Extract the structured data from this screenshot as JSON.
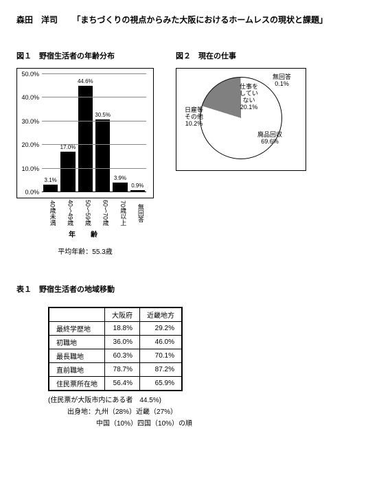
{
  "header": {
    "author": "森田　洋司",
    "title": "「まちづくりの視点からみた大阪におけるホームレスの現状と課題」"
  },
  "fig1": {
    "caption": "図１　野宿生活者の年齢分布",
    "y_max": 50.0,
    "y_step": 10.0,
    "y_ticks": [
      "0.0%",
      "10.0%",
      "20.0%",
      "30.0%",
      "40.0%",
      "50.0%"
    ],
    "categories": [
      "40歳未満",
      "40～49歳",
      "50～59歳",
      "60～70歳",
      "70歳以上",
      "無回答"
    ],
    "values": [
      3.1,
      17.0,
      44.6,
      30.5,
      3.9,
      0.9
    ],
    "value_labels": [
      "3.1%",
      "17.0%",
      "44.6%",
      "30.5%",
      "3.9%",
      "0.9%"
    ],
    "bar_color": "#000000",
    "axis_title": "年　齢",
    "avg_note": "平均年齢：55.3歳"
  },
  "fig2": {
    "caption": "図２　現在の仕事",
    "slices": [
      {
        "label": "廃品回収",
        "value": 69.6,
        "value_label": "69.6%",
        "color": "#ffffff"
      },
      {
        "label": "日雇等\nその他",
        "value": 10.2,
        "value_label": "10.2%",
        "color": "#ffffff"
      },
      {
        "label": "仕事を\nしてい\nない",
        "value": 20.1,
        "value_label": "20.1%",
        "color": "#808080"
      },
      {
        "label": "無回答",
        "value": 0.1,
        "value_label": "0.1%",
        "color": "#ffffff"
      }
    ],
    "border_color": "#000000"
  },
  "table1": {
    "caption": "表１　野宿生活者の地域移動",
    "columns": [
      "",
      "大阪府",
      "近畿地方"
    ],
    "rows": [
      {
        "label": "最終学歴地",
        "v1": "18.8%",
        "v2": "29.2%"
      },
      {
        "label": "初職地",
        "v1": "36.0%",
        "v2": "46.0%"
      },
      {
        "label": "最長職地",
        "v1": "60.3%",
        "v2": "70.1%"
      },
      {
        "label": "直前職地",
        "v1": "78.7%",
        "v2": "87.2%"
      },
      {
        "label": "住民票所在地",
        "v1": "56.4%",
        "v2": "65.9%"
      }
    ],
    "notes": [
      "(住民票が大阪市内にある者　44.5%)",
      "出身地：九州（28%）近畿（27%）",
      "中国（10%）四国（10%）の順"
    ]
  }
}
